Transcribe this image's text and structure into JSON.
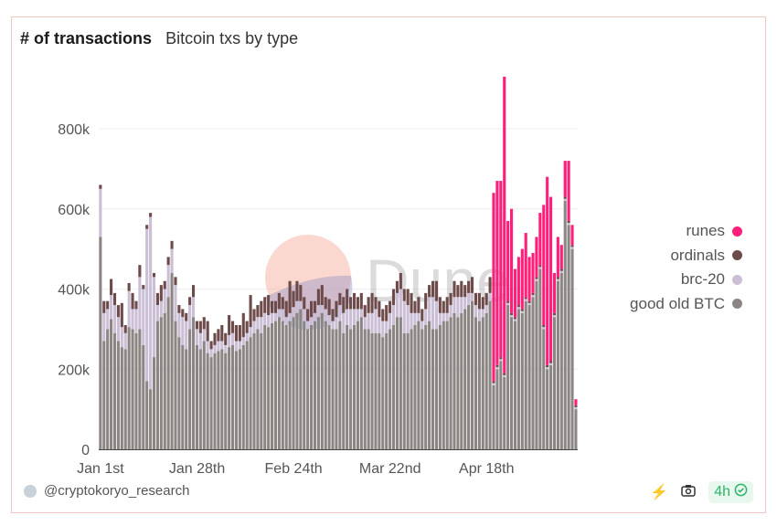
{
  "header": {
    "title": "# of transactions",
    "subtitle": "Bitcoin txs by type"
  },
  "footer": {
    "author": "@cryptokoryo_research",
    "refresh_label": "4h"
  },
  "watermark": "Dune",
  "chart_data": {
    "type": "bar",
    "stacked": true,
    "title": "# of transactions",
    "subtitle": "Bitcoin txs by type",
    "xlabel": "",
    "ylabel": "",
    "ylim": [
      0,
      900000
    ],
    "yticks": [
      {
        "v": 0,
        "label": "0"
      },
      {
        "v": 200000,
        "label": "200k"
      },
      {
        "v": 400000,
        "label": "400k"
      },
      {
        "v": 600000,
        "label": "600k"
      },
      {
        "v": 800000,
        "label": "800k"
      }
    ],
    "xticks": [
      {
        "i": 0,
        "label": "Jan 1st"
      },
      {
        "i": 27,
        "label": "Jan 28th"
      },
      {
        "i": 54,
        "label": "Feb 24th"
      },
      {
        "i": 81,
        "label": "Mar 22nd"
      },
      {
        "i": 108,
        "label": "Apr 18th"
      }
    ],
    "legend_position": "right",
    "grid": true,
    "units": "thousands",
    "series": [
      {
        "name": "good old BTC",
        "color": "#8b8684",
        "values": [
          530,
          270,
          300,
          325,
          290,
          270,
          255,
          250,
          305,
          300,
          290,
          300,
          260,
          170,
          150,
          230,
          320,
          330,
          340,
          380,
          440,
          320,
          280,
          260,
          250,
          300,
          330,
          260,
          250,
          270,
          240,
          230,
          240,
          245,
          250,
          240,
          255,
          260,
          245,
          250,
          260,
          270,
          280,
          290,
          300,
          290,
          310,
          305,
          315,
          320,
          330,
          320,
          310,
          320,
          330,
          340,
          350,
          320,
          300,
          310,
          320,
          330,
          340,
          320,
          310,
          300,
          300,
          320,
          290,
          310,
          300,
          310,
          320,
          330,
          300,
          300,
          290,
          290,
          290,
          280,
          290,
          300,
          310,
          330,
          330,
          290,
          290,
          300,
          310,
          320,
          300,
          310,
          320,
          300,
          300,
          310,
          320,
          320,
          330,
          340,
          330,
          340,
          350,
          360,
          370,
          330,
          320,
          330,
          340,
          370,
          160,
          200,
          220,
          180,
          360,
          330,
          320,
          350,
          340,
          370,
          360,
          380,
          420,
          450,
          300,
          200,
          210,
          330,
          420,
          440,
          620,
          560,
          500,
          100
        ]
      },
      {
        "name": "brc-20",
        "color": "#cbbfd6",
        "values": [
          120,
          70,
          50,
          60,
          70,
          60,
          50,
          40,
          90,
          50,
          60,
          130,
          140,
          380,
          430,
          200,
          40,
          40,
          60,
          80,
          60,
          90,
          60,
          70,
          70,
          60,
          50,
          40,
          40,
          30,
          30,
          20,
          20,
          25,
          20,
          20,
          30,
          30,
          25,
          20,
          20,
          20,
          25,
          30,
          30,
          40,
          30,
          30,
          25,
          20,
          20,
          30,
          20,
          20,
          25,
          30,
          20,
          30,
          20,
          20,
          20,
          30,
          20,
          30,
          25,
          20,
          30,
          40,
          50,
          40,
          50,
          40,
          30,
          20,
          30,
          40,
          50,
          60,
          40,
          40,
          30,
          40,
          50,
          60,
          70,
          80,
          70,
          40,
          30,
          20,
          20,
          40,
          60,
          80,
          70,
          30,
          20,
          20,
          30,
          40,
          50,
          40,
          30,
          30,
          20,
          30,
          30,
          20,
          20,
          20,
          5,
          5,
          5,
          5,
          5,
          5,
          5,
          5,
          5,
          5,
          5,
          5,
          5,
          5,
          5,
          5,
          5,
          5,
          5,
          5,
          5,
          5,
          5,
          5
        ]
      },
      {
        "name": "ordinals",
        "color": "#6e4b4b",
        "values": [
          10,
          30,
          20,
          40,
          30,
          30,
          60,
          20,
          20,
          40,
          20,
          30,
          10,
          10,
          10,
          10,
          30,
          40,
          20,
          20,
          20,
          20,
          20,
          20,
          20,
          20,
          30,
          20,
          30,
          30,
          50,
          20,
          30,
          30,
          40,
          30,
          50,
          30,
          40,
          40,
          60,
          30,
          80,
          30,
          30,
          40,
          40,
          50,
          30,
          30,
          40,
          30,
          40,
          80,
          40,
          50,
          40,
          30,
          30,
          40,
          30,
          40,
          50,
          30,
          40,
          30,
          40,
          30,
          40,
          50,
          30,
          40,
          30,
          40,
          30,
          40,
          50,
          30,
          40,
          30,
          40,
          30,
          40,
          30,
          40,
          30,
          40,
          50,
          30,
          40,
          30,
          40,
          30,
          40,
          50,
          40,
          30,
          40,
          30,
          40,
          30,
          40,
          30,
          30,
          40,
          30,
          40,
          30,
          30,
          40,
          5,
          5,
          5,
          5,
          5,
          5,
          5,
          5,
          5,
          5,
          5,
          5,
          5,
          5,
          5,
          5,
          5,
          5,
          5,
          5,
          5,
          5,
          5,
          5
        ]
      },
      {
        "name": "runes",
        "color": "#ff1f7a",
        "values": [
          0,
          0,
          0,
          0,
          0,
          0,
          0,
          0,
          0,
          0,
          0,
          0,
          0,
          0,
          0,
          0,
          0,
          0,
          0,
          0,
          0,
          0,
          0,
          0,
          0,
          0,
          0,
          0,
          0,
          0,
          0,
          0,
          0,
          0,
          0,
          0,
          0,
          0,
          0,
          0,
          0,
          0,
          0,
          0,
          0,
          0,
          0,
          0,
          0,
          0,
          0,
          0,
          0,
          0,
          0,
          0,
          0,
          0,
          0,
          0,
          0,
          0,
          0,
          0,
          0,
          0,
          0,
          0,
          0,
          0,
          0,
          0,
          0,
          0,
          0,
          0,
          0,
          0,
          0,
          0,
          0,
          0,
          0,
          0,
          0,
          0,
          0,
          0,
          0,
          0,
          0,
          0,
          0,
          0,
          0,
          0,
          0,
          0,
          0,
          0,
          0,
          0,
          0,
          0,
          0,
          0,
          0,
          0,
          0,
          0,
          470,
          460,
          440,
          740,
          200,
          260,
          120,
          120,
          150,
          160,
          110,
          100,
          100,
          130,
          300,
          470,
          410,
          100,
          100,
          60,
          90,
          150,
          50,
          15
        ]
      }
    ]
  }
}
